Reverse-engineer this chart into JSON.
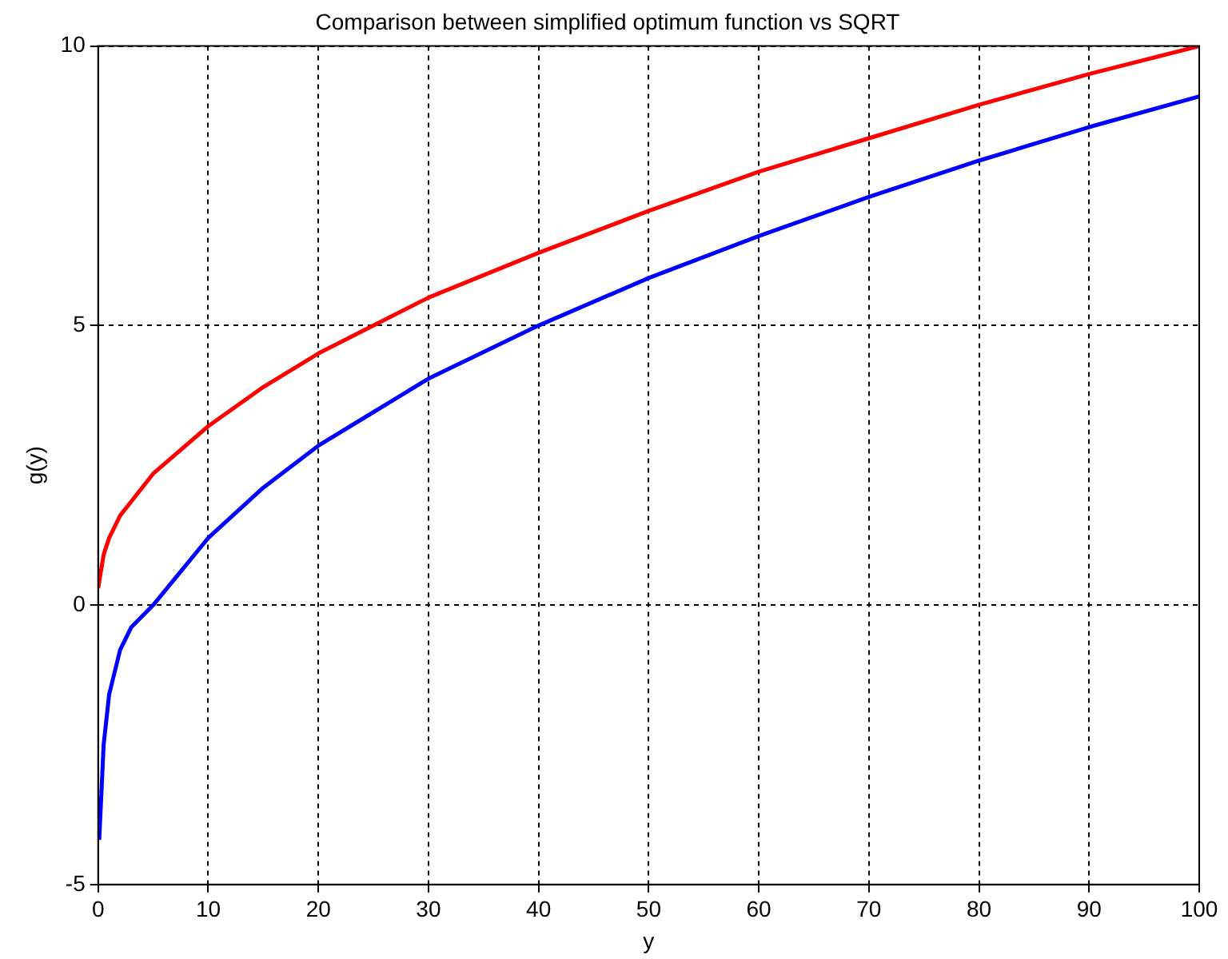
{
  "chart_data": {
    "type": "line",
    "title": "Comparison between simplified optimum function vs SQRT",
    "xlabel": "y",
    "ylabel": "g(y)",
    "xlim": [
      0,
      100
    ],
    "ylim": [
      -5,
      10
    ],
    "xticks": [
      0,
      10,
      20,
      30,
      40,
      50,
      60,
      70,
      80,
      90,
      100
    ],
    "yticks": [
      -5,
      0,
      5,
      10
    ],
    "grid": true,
    "legend": false,
    "marker": "none",
    "line_style": "solid",
    "series": [
      {
        "color": "#ff0000",
        "x": [
          0,
          0.5,
          1,
          2,
          5,
          10,
          15,
          20,
          25,
          30,
          40,
          50,
          60,
          70,
          80,
          90,
          100
        ],
        "values": [
          0.3,
          0.9,
          1.2,
          1.6,
          2.35,
          3.2,
          3.9,
          4.5,
          5.0,
          5.5,
          6.3,
          7.05,
          7.75,
          8.35,
          8.95,
          9.5,
          10
        ]
      },
      {
        "color": "#0000ff",
        "x": [
          0.1,
          0.5,
          1,
          2,
          3,
          5,
          7.5,
          10,
          15,
          20,
          25,
          30,
          40,
          50,
          60,
          70,
          80,
          90,
          100
        ],
        "values": [
          -4.2,
          -2.5,
          -1.6,
          -0.8,
          -0.4,
          0,
          0.6,
          1.2,
          2.1,
          2.85,
          3.45,
          4.05,
          5.0,
          5.85,
          6.6,
          7.3,
          7.95,
          8.55,
          9.1
        ]
      }
    ]
  }
}
